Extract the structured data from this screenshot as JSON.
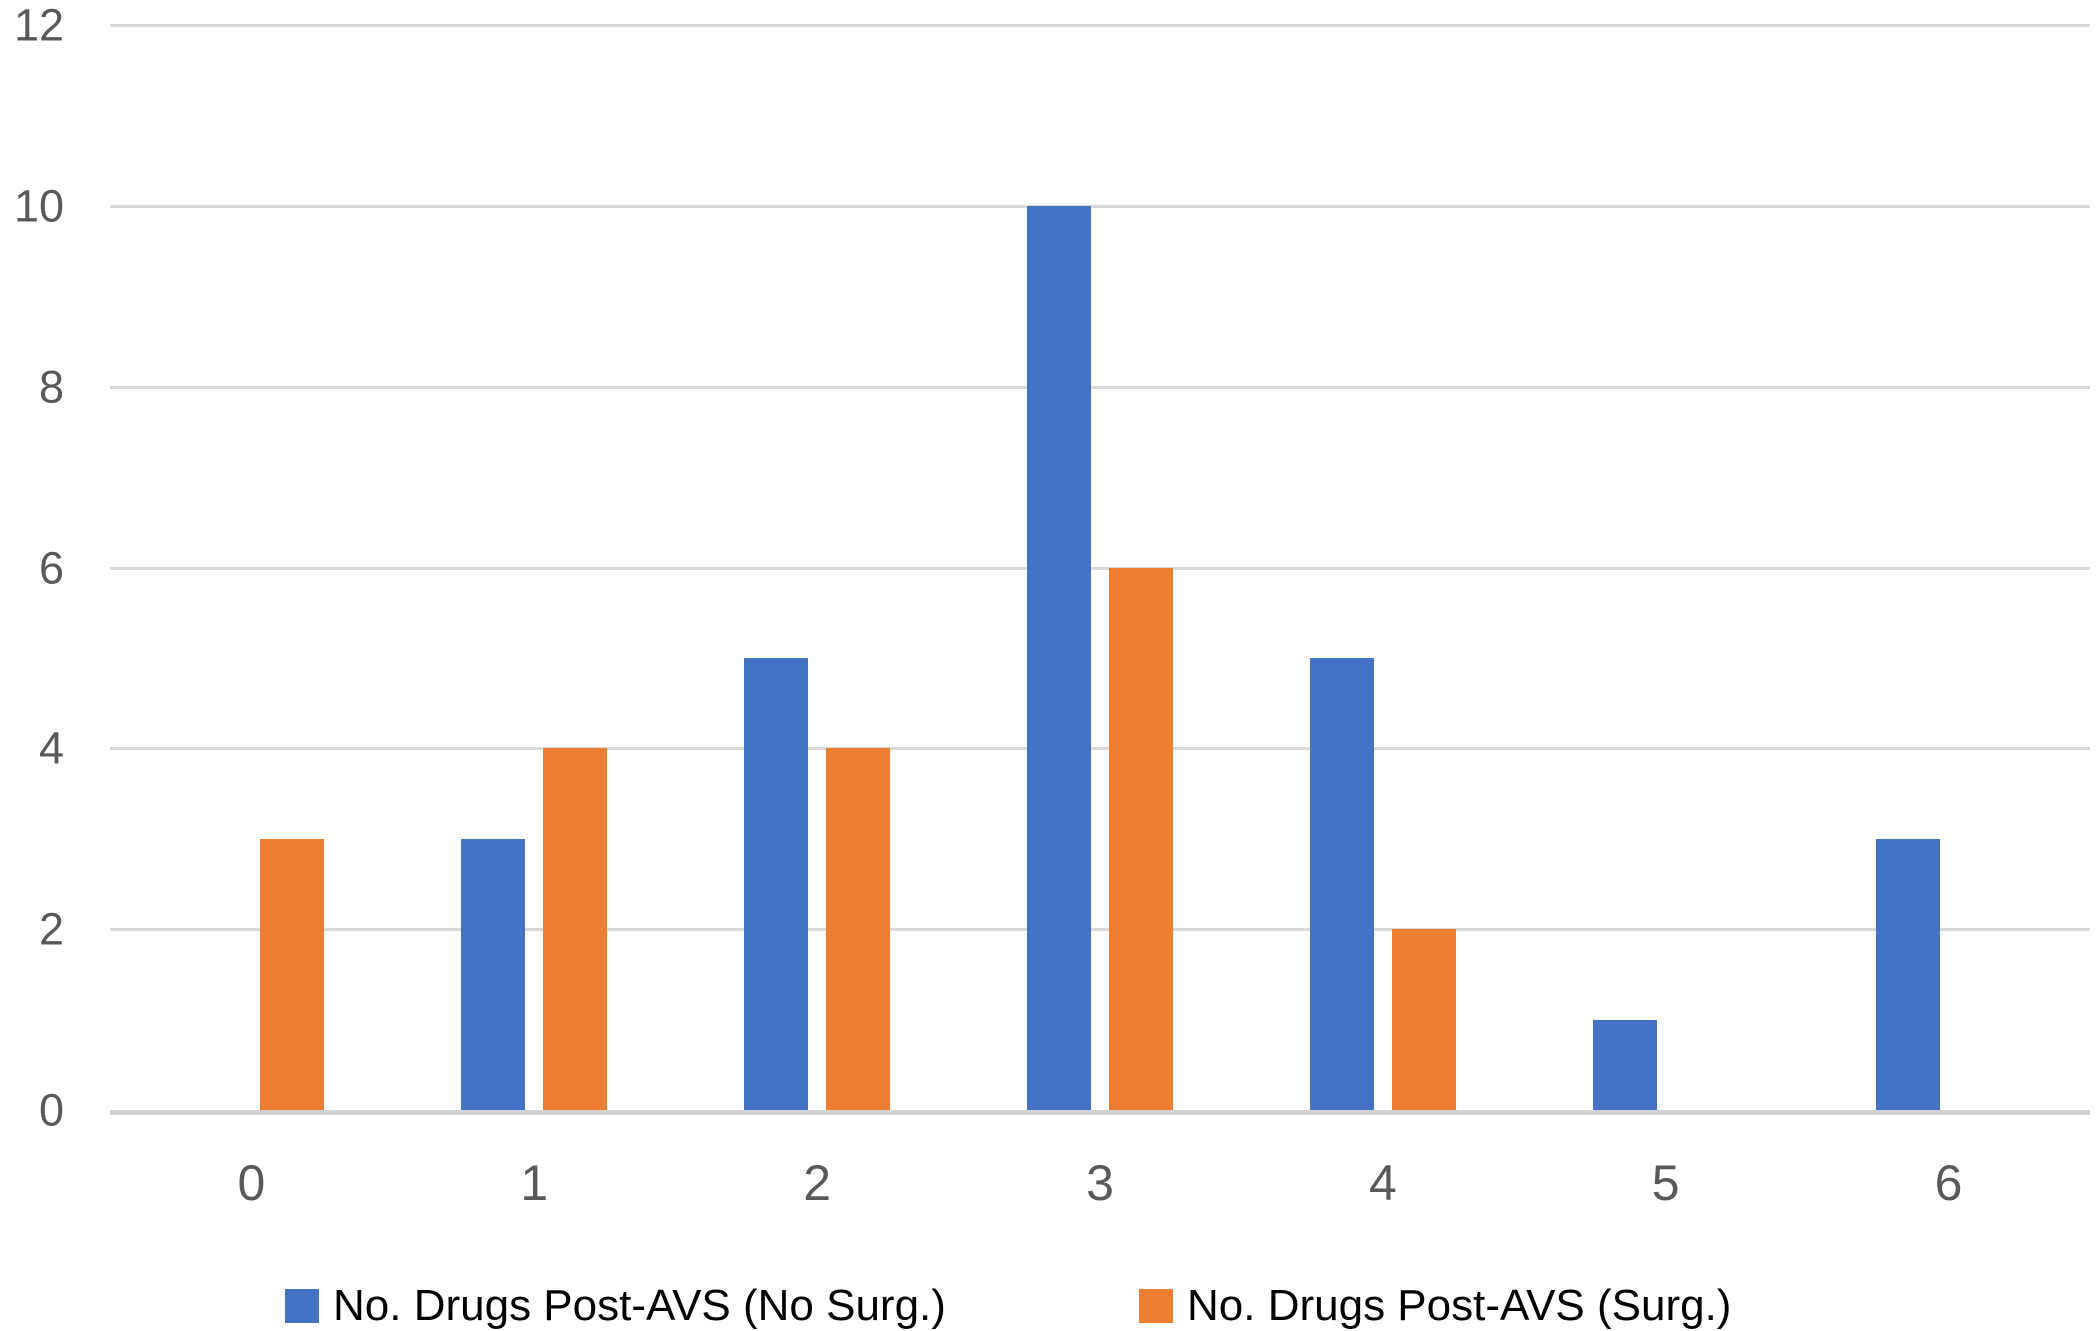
{
  "figure": {
    "background": "#ffffff"
  },
  "chart_data": {
    "type": "bar",
    "title": "",
    "xlabel": "",
    "ylabel": "",
    "categories": [
      "0",
      "1",
      "2",
      "3",
      "4",
      "5",
      "6"
    ],
    "series": [
      {
        "name": "No. Drugs Post-AVS (No Surg.)",
        "color": "#4472C4",
        "values": [
          0,
          3,
          5,
          10,
          5,
          1,
          3
        ]
      },
      {
        "name": "No. Drugs Post-AVS (Surg.)",
        "color": "#ED7D31",
        "values": [
          3,
          4,
          4,
          6,
          2,
          0,
          0
        ]
      }
    ],
    "y_ticks": [
      "0",
      "2",
      "4",
      "6",
      "8",
      "10",
      "12"
    ],
    "ylim": [
      0,
      12
    ],
    "grid": true,
    "gridline_color": "#D9D9D9",
    "axis_line_color": "#D2D2D2",
    "tick_label_color": "#595959",
    "legend_position": "bottom",
    "legend_text_color": "#000000"
  }
}
